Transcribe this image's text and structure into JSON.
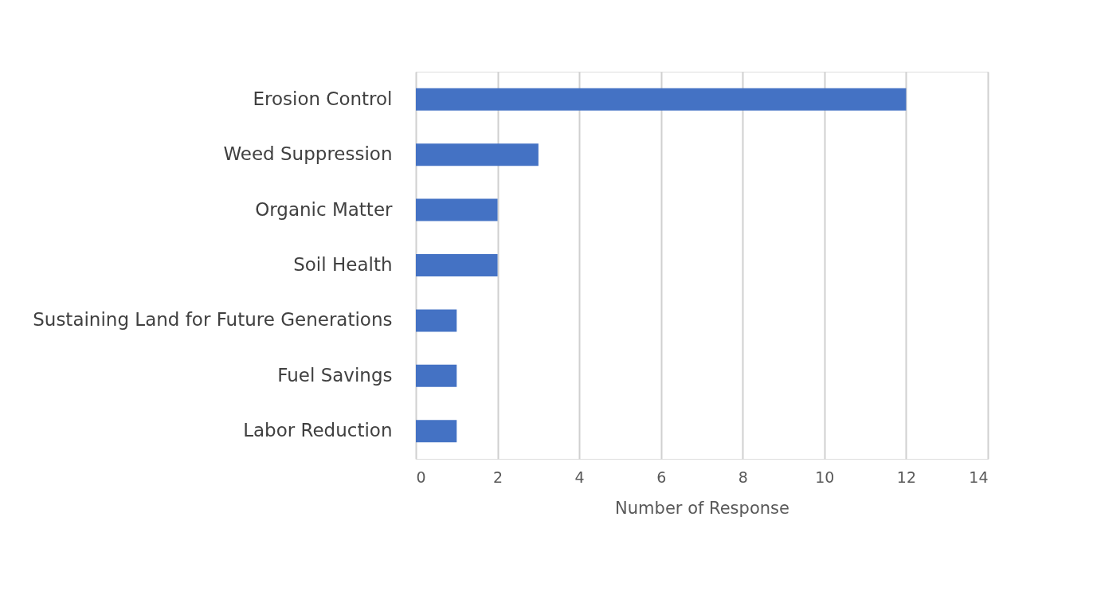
{
  "chart_data": {
    "type": "bar",
    "orientation": "horizontal",
    "xlabel": "Number of Response",
    "categories": [
      "Erosion Control",
      "Weed Suppression",
      "Organic Matter",
      "Soil Health",
      "Sustaining Land for Future Generations",
      "Fuel Savings",
      "Labor Reduction"
    ],
    "values": [
      12,
      3,
      2,
      2,
      1,
      1,
      1
    ],
    "color": "#4472c4",
    "xlim": [
      0,
      14
    ],
    "xticks": [
      0,
      2,
      4,
      6,
      8,
      10,
      12,
      14
    ],
    "grid": "x"
  }
}
